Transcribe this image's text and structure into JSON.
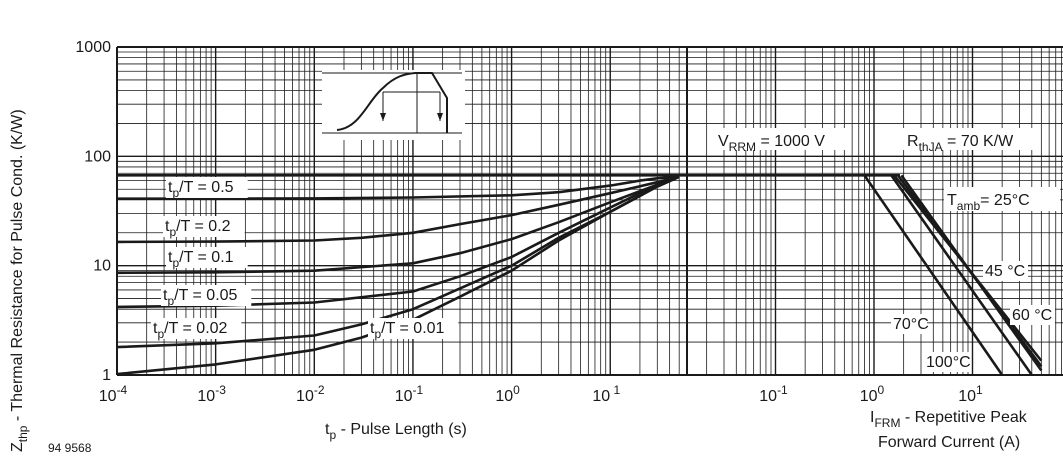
{
  "chart_data": [
    {
      "type": "line",
      "title": "",
      "xlabel": "t",
      "xlabel_sub": "p",
      "xlabel_rest": " - Pulse Length (s)",
      "ylabel": "Z",
      "ylabel_sub": "thp",
      "ylabel_rest": " - Thermal Resistance for Pulse Cond. (K/W)",
      "xscale": "log",
      "yscale": "log",
      "xlim": [
        0.0001,
        60
      ],
      "ylim": [
        1,
        1000
      ],
      "grid": true,
      "x_ticks": [
        {
          "base": "10",
          "exp": "-4",
          "v": 0.0001
        },
        {
          "base": "10",
          "exp": "-3",
          "v": 0.001
        },
        {
          "base": "10",
          "exp": "-2",
          "v": 0.01
        },
        {
          "base": "10",
          "exp": "-1",
          "v": 0.1
        },
        {
          "base": "10",
          "exp": "0",
          "v": 1
        },
        {
          "base": "10",
          "exp": " 1",
          "v": 10
        }
      ],
      "y_ticks": [
        {
          "label": "1",
          "v": 1
        },
        {
          "label": "10",
          "v": 10
        },
        {
          "label": "100",
          "v": 100
        },
        {
          "label": "1000",
          "v": 1000
        }
      ],
      "series": [
        {
          "pre": "t",
          "sub": "p",
          "post": "/T = 0.5",
          "x": [
            0.0001,
            0.001,
            0.01,
            0.1,
            1,
            3,
            10,
            20,
            30,
            50
          ],
          "y": [
            41,
            41,
            41.2,
            42,
            44,
            47,
            54,
            60,
            63,
            65
          ]
        },
        {
          "pre": "t",
          "sub": "p",
          "post": "/T = 0.2",
          "x": [
            0.0001,
            0.001,
            0.01,
            0.03,
            0.1,
            0.3,
            1,
            3,
            10,
            30,
            50
          ],
          "y": [
            16.5,
            16.6,
            17,
            18,
            20,
            24,
            29,
            36,
            46,
            58,
            65
          ]
        },
        {
          "pre": "t",
          "sub": "p",
          "post": "/T = 0.1",
          "x": [
            0.0001,
            0.001,
            0.01,
            0.1,
            0.3,
            1,
            3,
            10,
            30,
            50
          ],
          "y": [
            8.6,
            8.7,
            9,
            10.5,
            13,
            17.5,
            25,
            38,
            55,
            65
          ]
        },
        {
          "pre": "t",
          "sub": "p",
          "post": "/T = 0.05",
          "x": [
            0.0001,
            0.001,
            0.01,
            0.1,
            0.3,
            1,
            3,
            10,
            30,
            50
          ],
          "y": [
            4.2,
            4.3,
            4.6,
            5.8,
            8,
            12,
            20,
            34,
            55,
            65
          ]
        },
        {
          "pre": "t",
          "sub": "p",
          "post": "/T = 0.02",
          "x": [
            0.0001,
            0.001,
            0.01,
            0.03,
            0.1,
            0.3,
            1,
            3,
            10,
            30,
            50
          ],
          "y": [
            1.8,
            1.95,
            2.3,
            2.9,
            4,
            6.2,
            10,
            18,
            31,
            53,
            65
          ]
        },
        {
          "pre": "t",
          "sub": "p",
          "post": "/T = 0.01",
          "x": [
            0.0001,
            0.001,
            0.01,
            0.03,
            0.1,
            0.3,
            1,
            3,
            10,
            30,
            50
          ],
          "y": [
            1.02,
            1.25,
            1.7,
            2.2,
            3.2,
            5.2,
            9,
            17,
            31,
            53,
            65
          ]
        }
      ],
      "upper_line": {
        "y": 67
      }
    },
    {
      "type": "line",
      "xlabel": "I",
      "xlabel_sub": "FRM",
      "xlabel_rest": " - Repetitive Peak",
      "xlabel_line2": "Forward Current (A)",
      "xscale": "log",
      "yscale": "log",
      "xlim": [
        0.01,
        50
      ],
      "grid": true,
      "x_ticks": [
        {
          "base": "10",
          "exp": "-1",
          "v": 0.1
        },
        {
          "base": "10",
          "exp": "0",
          "v": 1
        },
        {
          "base": "10",
          "exp": "1",
          "v": 10
        }
      ],
      "annotations": {
        "vrrm": {
          "pre": "V",
          "sub": "RRM",
          "post": " = 1000 V"
        },
        "rthja": {
          "pre": "R",
          "sub": "thJA",
          "post": " = 70 K/W"
        },
        "tamb": {
          "pre": "T",
          "sub": "amb",
          "post": "= 25°C"
        }
      },
      "series": [
        {
          "name": "25°C",
          "x": [
            1.9,
            50
          ],
          "y": [
            67,
            1.1
          ]
        },
        {
          "name": "45°C",
          "x": [
            1.75,
            50
          ],
          "y": [
            67,
            1.2
          ]
        },
        {
          "name": "60°C",
          "x": [
            1.6,
            50
          ],
          "y": [
            67,
            1.35
          ]
        },
        {
          "name": "70°C",
          "x": [
            1.5,
            40
          ],
          "y": [
            67,
            1
          ]
        },
        {
          "name": "100°C",
          "x": [
            0.8,
            20
          ],
          "y": [
            67,
            1
          ]
        }
      ],
      "series_labels": [
        "45 °C",
        "60 °C",
        "70°C",
        "100°C"
      ]
    }
  ],
  "figure_id": "94 9568"
}
